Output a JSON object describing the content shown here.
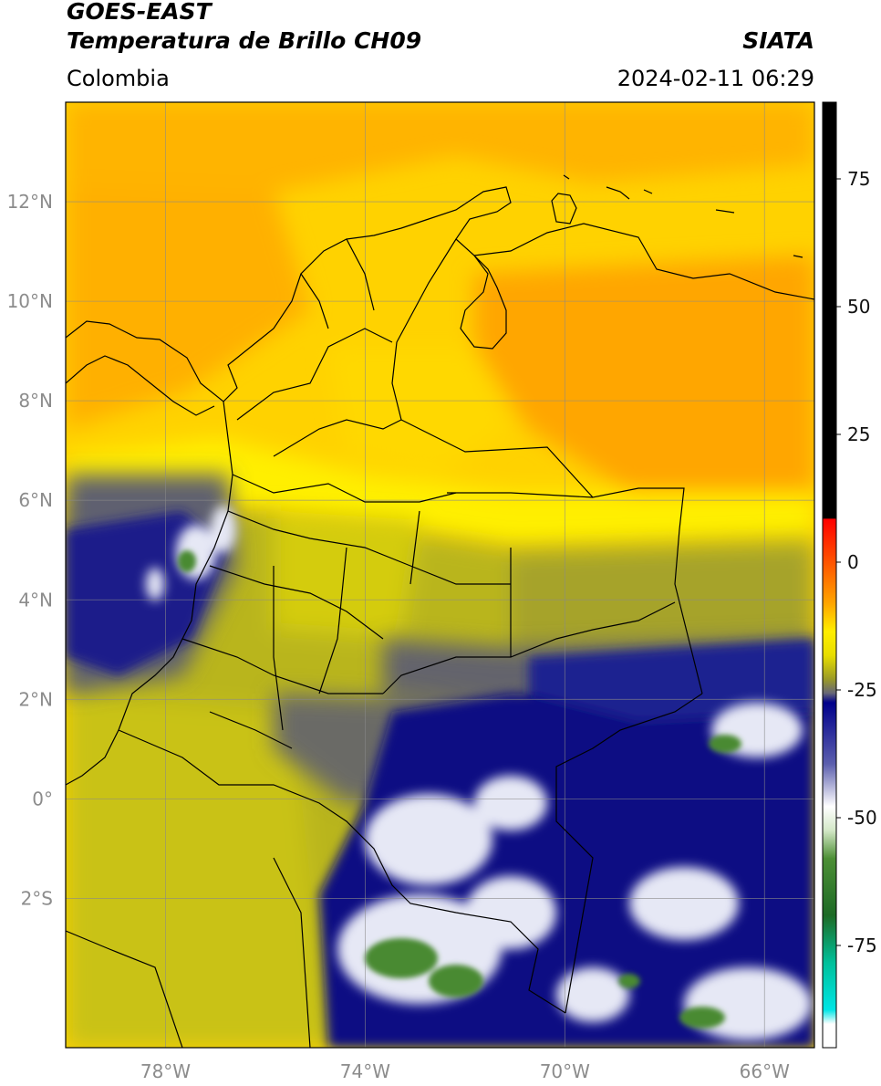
{
  "header": {
    "satellite": "GOES-EAST",
    "product": "Temperatura de Brillo CH09",
    "region": "Colombia",
    "agency": "SIATA",
    "timestamp": "2024-02-11 06:29"
  },
  "map": {
    "lon_range": [
      -80,
      -65
    ],
    "lat_range": [
      -5,
      14
    ],
    "lon_ticks": [
      {
        "value": -78,
        "label": "78°W"
      },
      {
        "value": -74,
        "label": "74°W"
      },
      {
        "value": -70,
        "label": "70°W"
      },
      {
        "value": -66,
        "label": "66°W"
      }
    ],
    "lat_ticks": [
      {
        "value": 12,
        "label": "12°N"
      },
      {
        "value": 10,
        "label": "10°N"
      },
      {
        "value": 8,
        "label": "8°N"
      },
      {
        "value": 6,
        "label": "6°N"
      },
      {
        "value": 4,
        "label": "4°N"
      },
      {
        "value": 2,
        "label": "2°N"
      },
      {
        "value": 0,
        "label": "0°"
      },
      {
        "value": -2,
        "label": "2°S"
      }
    ],
    "gridlines": true
  },
  "colorbar": {
    "range": [
      -95,
      90
    ],
    "ticks": [
      {
        "value": 75,
        "label": "75"
      },
      {
        "value": 50,
        "label": "50"
      },
      {
        "value": 25,
        "label": "25"
      },
      {
        "value": 0,
        "label": "0"
      },
      {
        "value": -25,
        "label": "-25"
      },
      {
        "value": -50,
        "label": "-50"
      },
      {
        "value": -75,
        "label": "-75"
      }
    ],
    "colors": {
      "black": "#000000",
      "red": "#ff0000",
      "orange": "#ffa500",
      "yellow": "#ffff00",
      "olive": "#9b9b26",
      "gray": "#555566",
      "navy": "#00008b",
      "white": "#ffffff",
      "green": "#2e7d1e",
      "cyan": "#00e5e5"
    }
  }
}
